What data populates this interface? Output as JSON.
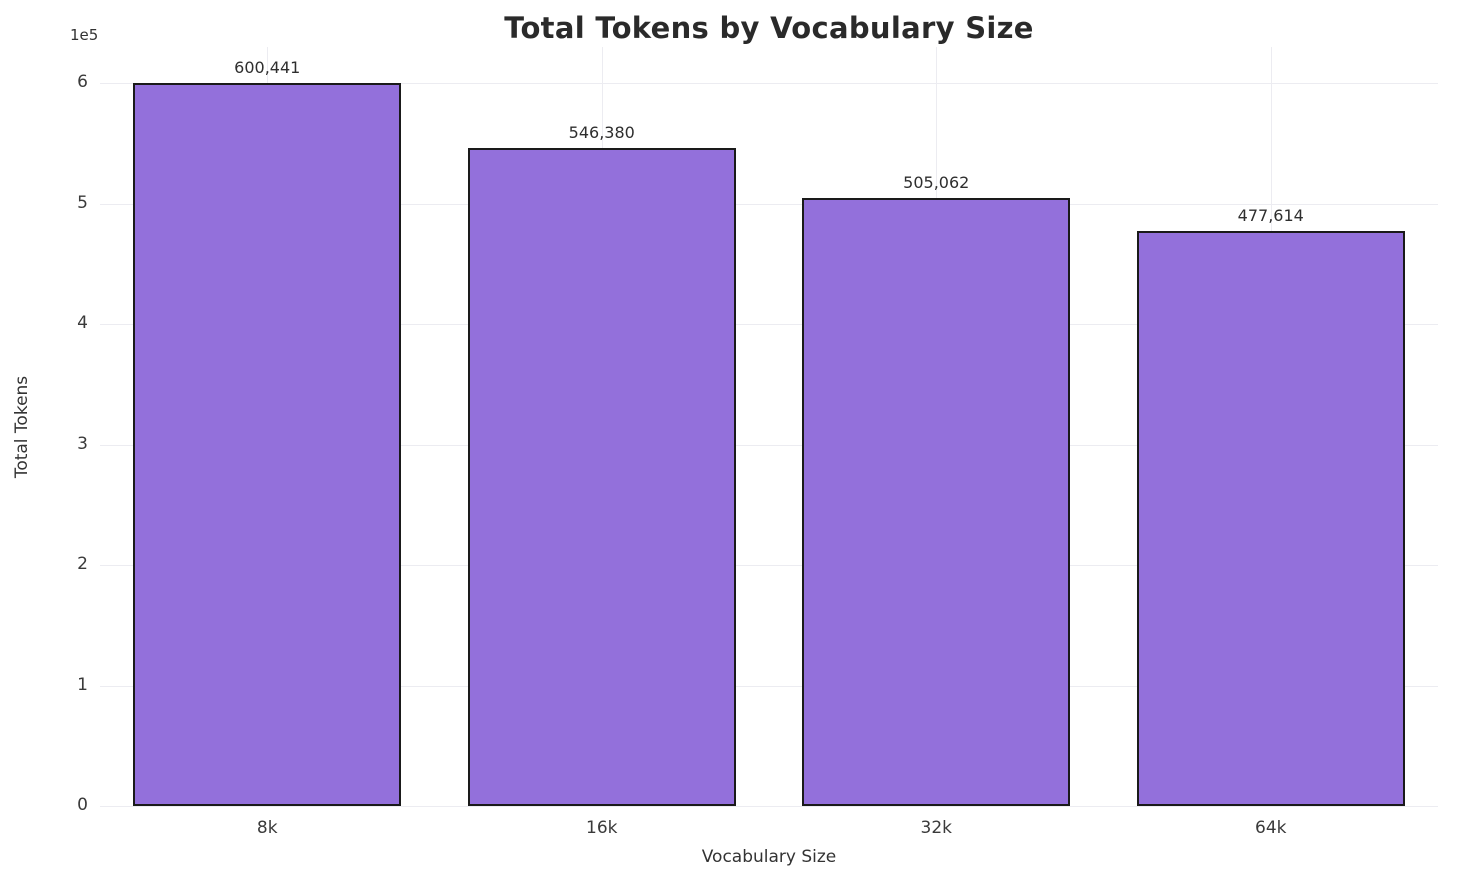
{
  "chart_data": {
    "type": "bar",
    "title": "Total Tokens by Vocabulary Size",
    "xlabel": "Vocabulary Size",
    "ylabel": "Total Tokens",
    "y_offset_text": "1e5",
    "categories": [
      "8k",
      "16k",
      "32k",
      "64k"
    ],
    "values": [
      600441,
      546380,
      505062,
      477614
    ],
    "value_labels": [
      "600,441",
      "546,380",
      "505,062",
      "477,614"
    ],
    "ylim": [
      0,
      630000
    ],
    "yticks": [
      0,
      1,
      2,
      3,
      4,
      5,
      6
    ],
    "ytick_scale": 100000,
    "grid": "both",
    "legend": "none",
    "bar_color": "#9370DB",
    "bar_edge_color": "#1a1a1a",
    "grid_color": "#ececf1",
    "background_color": "#ffffff"
  }
}
